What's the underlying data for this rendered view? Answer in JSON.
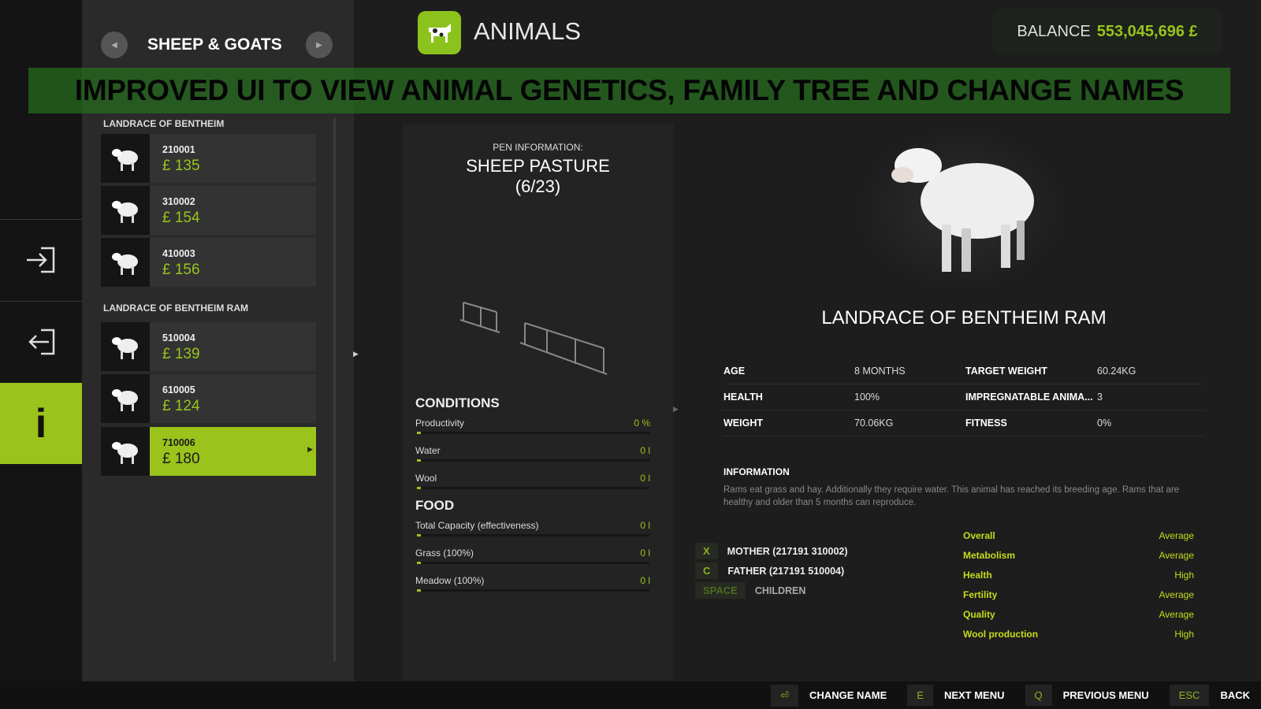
{
  "header": {
    "category": "SHEEP & GOATS",
    "title": "ANIMALS",
    "balance_label": "BALANCE",
    "balance_value": "553,045,696 £"
  },
  "banner": "IMPROVED UI TO VIEW ANIMAL GENETICS, FAMILY TREE AND CHANGE NAMES",
  "groups": [
    {
      "name": "LANDRACE OF BENTHEIM",
      "items": [
        {
          "id": "210001",
          "price": "£ 135"
        },
        {
          "id": "310002",
          "price": "£ 154"
        },
        {
          "id": "410003",
          "price": "£ 156"
        }
      ]
    },
    {
      "name": "LANDRACE OF BENTHEIM RAM",
      "items": [
        {
          "id": "510004",
          "price": "£ 139"
        },
        {
          "id": "610005",
          "price": "£ 124"
        },
        {
          "id": "710006",
          "price": "£ 180",
          "selected": true
        }
      ]
    }
  ],
  "pen": {
    "label": "PEN INFORMATION:",
    "name": "SHEEP PASTURE",
    "count": "(6/23)"
  },
  "conditions": {
    "title": "CONDITIONS",
    "rows": [
      {
        "label": "Productivity",
        "value": "0 %"
      },
      {
        "label": "Water",
        "value": "0 l"
      },
      {
        "label": "Wool",
        "value": "0 l"
      }
    ]
  },
  "food": {
    "title": "FOOD",
    "rows": [
      {
        "label": "Total Capacity (effectiveness)",
        "value": "0 l"
      },
      {
        "label": "Grass (100%)",
        "value": "0 l"
      },
      {
        "label": "Meadow (100%)",
        "value": "0 l"
      }
    ]
  },
  "animal": {
    "name": "LANDRACE OF BENTHEIM RAM",
    "stats": [
      [
        "AGE",
        "8 MONTHS",
        "TARGET WEIGHT",
        "60.24KG"
      ],
      [
        "HEALTH",
        "100%",
        "IMPREGNATABLE ANIMA...",
        "3"
      ],
      [
        "WEIGHT",
        "70.06KG",
        "FITNESS",
        "0%"
      ]
    ],
    "info_title": "INFORMATION",
    "info_text": "Rams eat grass and hay. Additionally they require water. This animal has reached its breeding age. Rams that are healthy and older than 5 months can reproduce.",
    "family": [
      {
        "key": "X",
        "label": "MOTHER (217191 310002)"
      },
      {
        "key": "C",
        "label": "FATHER (217191 510004)"
      },
      {
        "key": "SPACE",
        "label": "CHILDREN"
      }
    ],
    "genetics": [
      [
        "Overall",
        "Average"
      ],
      [
        "Metabolism",
        "Average"
      ],
      [
        "Health",
        "High"
      ],
      [
        "Fertility",
        "Average"
      ],
      [
        "Quality",
        "Average"
      ],
      [
        "Wool production",
        "High"
      ]
    ]
  },
  "hints": [
    {
      "key": "⏎",
      "label": "CHANGE NAME"
    },
    {
      "key": "E",
      "label": "NEXT MENU"
    },
    {
      "key": "Q",
      "label": "PREVIOUS MENU"
    },
    {
      "key": "ESC",
      "label": "BACK"
    }
  ],
  "colors": {
    "accent": "#9ac31c",
    "genetics": "#c6dc1c",
    "banner": "#266e1e"
  }
}
